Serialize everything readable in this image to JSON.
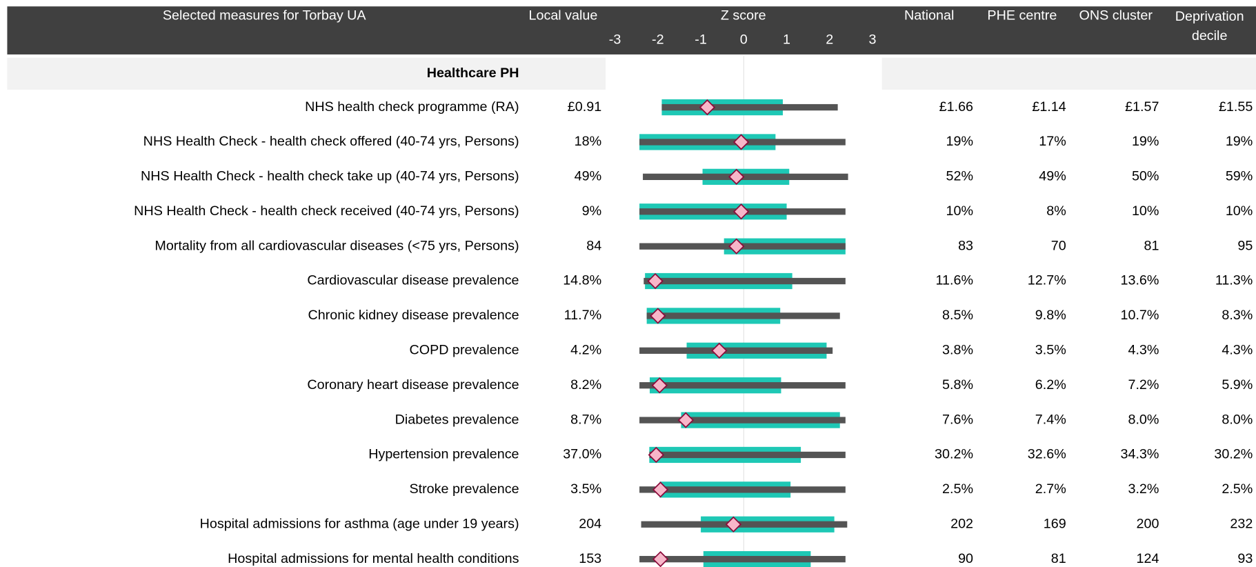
{
  "header": {
    "title": "Selected measures for Torbay UA",
    "local": "Local value",
    "z": "Z score",
    "national": "National",
    "phe": "PHE centre",
    "ons": "ONS cluster",
    "decile": "Deprivation decile"
  },
  "zlim": [
    -3.2,
    3.2
  ],
  "zticks": [
    -3,
    -2,
    -1,
    0,
    1,
    2,
    3
  ],
  "colors": {
    "range": "#545454",
    "interval": "#1ec8b5",
    "marker": "#f7b6c9",
    "marker_edge": "#8b0a3a"
  },
  "section": "Healthcare PH",
  "rows": [
    {
      "label": "NHS health check programme (RA)",
      "local": "£0.91",
      "national": "£1.66",
      "phe": "£1.14",
      "ons": "£1.57",
      "decile": "£1.55",
      "min": -1.91,
      "max": 2.19,
      "lo": -1.91,
      "hi": 0.91,
      "z": -0.85
    },
    {
      "label": "NHS Health Check - health check offered (40-74 yrs, Persons)",
      "local": "18%",
      "national": "19%",
      "phe": "17%",
      "ons": "19%",
      "decile": "19%",
      "min": -2.43,
      "max": 2.37,
      "lo": -2.43,
      "hi": 0.74,
      "z": -0.06
    },
    {
      "label": "NHS Health Check - health check take up (40-74 yrs, Persons)",
      "local": "49%",
      "national": "52%",
      "phe": "49%",
      "ons": "50%",
      "decile": "59%",
      "min": -2.35,
      "max": 2.43,
      "lo": -0.96,
      "hi": 1.06,
      "z": -0.17
    },
    {
      "label": "NHS Health Check - health check received (40-74 yrs, Persons)",
      "local": "9%",
      "national": "10%",
      "phe": "8%",
      "ons": "10%",
      "decile": "10%",
      "min": -2.43,
      "max": 2.37,
      "lo": -2.43,
      "hi": 1.0,
      "z": -0.06
    },
    {
      "label": "Mortality from all cardiovascular diseases (<75 yrs, Persons)",
      "local": "84",
      "national": "83",
      "phe": "70",
      "ons": "81",
      "decile": "95",
      "min": -2.43,
      "max": 2.37,
      "lo": -0.46,
      "hi": 2.37,
      "z": -0.17
    },
    {
      "label": "Cardiovascular disease prevalence",
      "local": "14.8%",
      "national": "11.6%",
      "phe": "12.7%",
      "ons": "13.6%",
      "decile": "11.3%",
      "min": -2.33,
      "max": 2.37,
      "lo": -2.3,
      "hi": 1.13,
      "z": -2.06
    },
    {
      "label": "Chronic kidney disease prevalence",
      "local": "11.7%",
      "national": "8.5%",
      "phe": "9.8%",
      "ons": "10.7%",
      "decile": "8.3%",
      "min": -2.26,
      "max": 2.24,
      "lo": -2.26,
      "hi": 0.85,
      "z": -2.0
    },
    {
      "label": "COPD prevalence",
      "local": "4.2%",
      "national": "3.8%",
      "phe": "3.5%",
      "ons": "4.3%",
      "decile": "4.3%",
      "min": -2.43,
      "max": 2.07,
      "lo": -1.33,
      "hi": 1.93,
      "z": -0.57
    },
    {
      "label": "Coronary heart disease prevalence",
      "local": "8.2%",
      "national": "5.8%",
      "phe": "6.2%",
      "ons": "7.2%",
      "decile": "5.9%",
      "min": -2.43,
      "max": 2.37,
      "lo": -2.19,
      "hi": 0.87,
      "z": -1.96
    },
    {
      "label": "Diabetes prevalence",
      "local": "8.7%",
      "national": "7.6%",
      "phe": "7.4%",
      "ons": "8.0%",
      "decile": "8.0%",
      "min": -2.43,
      "max": 2.37,
      "lo": -1.46,
      "hi": 2.24,
      "z": -1.35
    },
    {
      "label": "Hypertension prevalence",
      "local": "37.0%",
      "national": "30.2%",
      "phe": "32.6%",
      "ons": "34.3%",
      "decile": "30.2%",
      "min": -2.2,
      "max": 2.37,
      "lo": -2.2,
      "hi": 1.33,
      "z": -2.04
    },
    {
      "label": "Stroke prevalence",
      "local": "3.5%",
      "national": "2.5%",
      "phe": "2.7%",
      "ons": "3.2%",
      "decile": "2.5%",
      "min": -2.43,
      "max": 2.37,
      "lo": -1.96,
      "hi": 1.09,
      "z": -1.94
    },
    {
      "label": "Hospital admissions for asthma (age under 19 years)",
      "local": "204",
      "national": "202",
      "phe": "169",
      "ons": "200",
      "decile": "232",
      "min": -2.39,
      "max": 2.41,
      "lo": -1.0,
      "hi": 2.11,
      "z": -0.24
    },
    {
      "label": "Hospital admissions for mental health conditions",
      "local": "153",
      "national": "90",
      "phe": "81",
      "ons": "124",
      "decile": "93",
      "min": -2.43,
      "max": 2.37,
      "lo": -0.94,
      "hi": 1.56,
      "z": -1.94
    }
  ]
}
